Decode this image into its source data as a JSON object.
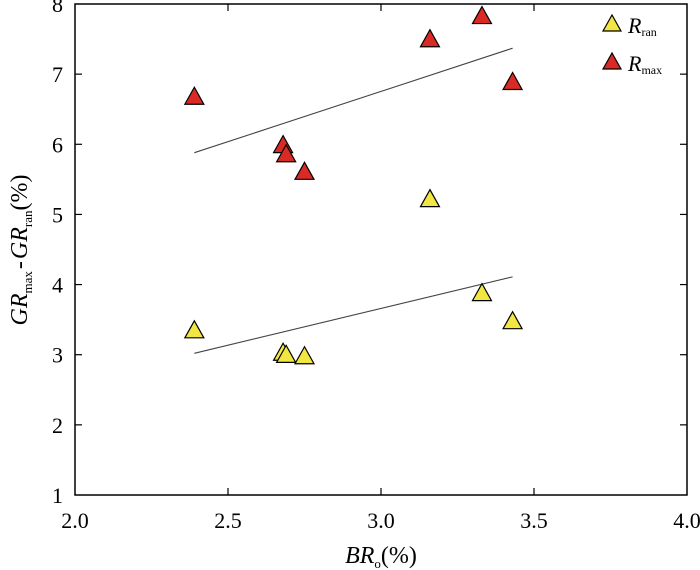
{
  "chart_data": {
    "type": "scatter",
    "xlim": [
      2.0,
      4.0
    ],
    "ylim": [
      1,
      8
    ],
    "x_ticks": [
      "2.0",
      "2.5",
      "3.0",
      "3.5",
      "4.0"
    ],
    "y_ticks": [
      "1",
      "2",
      "3",
      "4",
      "5",
      "6",
      "7",
      "8"
    ],
    "xlabel": {
      "main": "BR",
      "sub": "o",
      "suffix": "(%)"
    },
    "ylabel": {
      "p1": "GR",
      "s1": "max",
      "mid": "-",
      "p2": "GR",
      "s2": "ran",
      "suffix": "(%)"
    },
    "legend_position": "top-right",
    "grid": false,
    "series": [
      {
        "name": "R_ran",
        "legend": {
          "main": "R",
          "sub": "ran"
        },
        "marker": "triangle",
        "color": "#F2E642",
        "points": [
          {
            "x": 2.39,
            "y": 3.35
          },
          {
            "x": 2.68,
            "y": 3.03
          },
          {
            "x": 2.69,
            "y": 3.0
          },
          {
            "x": 2.75,
            "y": 2.98
          },
          {
            "x": 3.16,
            "y": 5.22
          },
          {
            "x": 3.33,
            "y": 3.88
          },
          {
            "x": 3.43,
            "y": 3.48
          }
        ],
        "trendline": {
          "x": [
            2.39,
            3.43
          ],
          "y": [
            3.02,
            4.11
          ]
        }
      },
      {
        "name": "R_max",
        "legend": {
          "main": "R",
          "sub": "max"
        },
        "marker": "triangle",
        "color": "#D92A25",
        "points": [
          {
            "x": 2.39,
            "y": 6.68
          },
          {
            "x": 2.68,
            "y": 5.99
          },
          {
            "x": 2.69,
            "y": 5.86
          },
          {
            "x": 2.75,
            "y": 5.61
          },
          {
            "x": 3.16,
            "y": 7.5
          },
          {
            "x": 3.33,
            "y": 7.83
          },
          {
            "x": 3.43,
            "y": 6.89
          }
        ],
        "trendline": {
          "x": [
            2.39,
            3.43
          ],
          "y": [
            5.88,
            7.37
          ]
        }
      }
    ]
  }
}
